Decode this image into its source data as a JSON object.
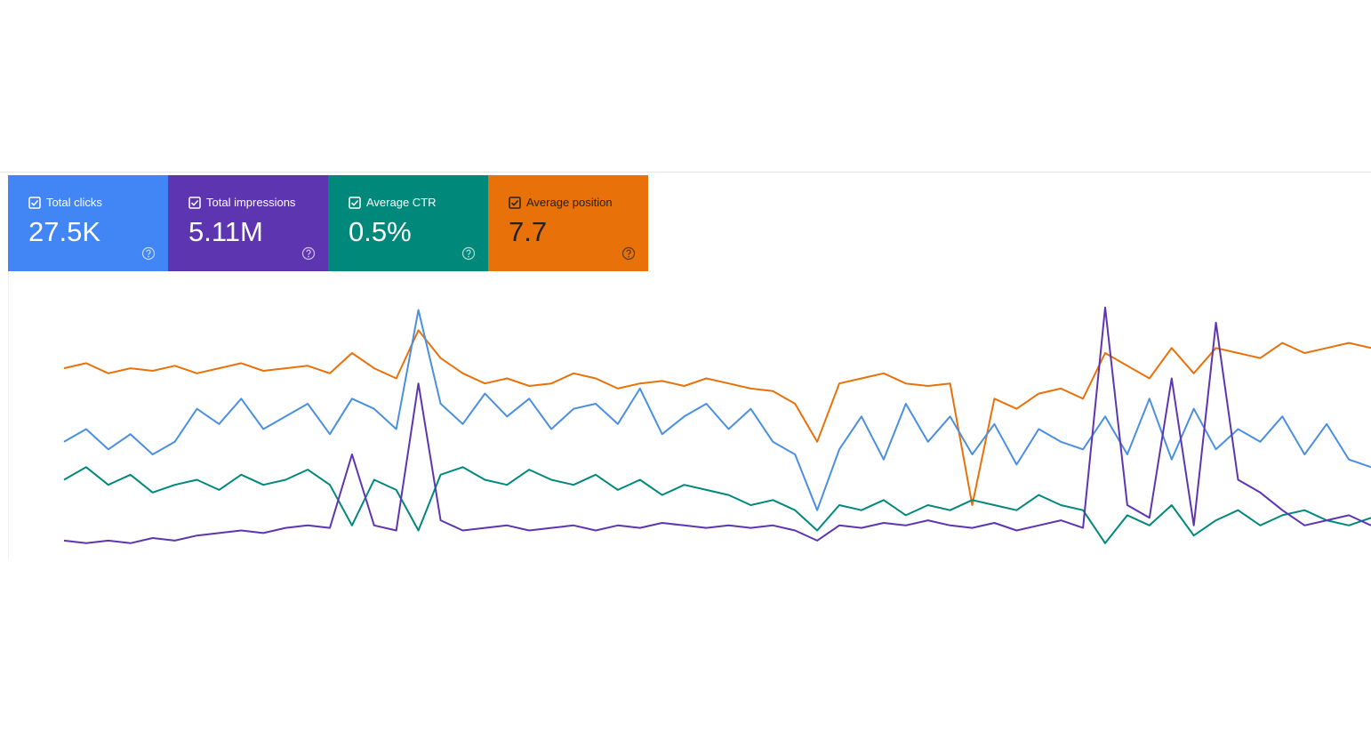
{
  "cards": [
    {
      "label": "Total clicks",
      "value": "27.5K",
      "color": "#4285f4"
    },
    {
      "label": "Total impressions",
      "value": "5.11M",
      "color": "#5e35b1"
    },
    {
      "label": "Average CTR",
      "value": "0.5%",
      "color": "#00897b"
    },
    {
      "label": "Average position",
      "value": "7.7",
      "color": "#e8710a"
    }
  ],
  "chart_data": {
    "type": "line",
    "ylim": [
      0,
      100
    ],
    "series": [
      {
        "color": "#e8710a",
        "values": [
          74,
          76,
          72,
          74,
          73,
          75,
          72,
          74,
          76,
          73,
          74,
          75,
          72,
          80,
          74,
          70,
          89,
          78,
          72,
          68,
          70,
          67,
          68,
          72,
          70,
          66,
          68,
          69,
          67,
          70,
          68,
          66,
          65,
          60,
          45,
          68,
          70,
          72,
          68,
          67,
          68,
          20,
          62,
          58,
          64,
          66,
          62,
          80,
          75,
          70,
          82,
          72,
          82,
          80,
          78,
          84,
          80,
          82,
          84,
          82
        ]
      },
      {
        "color": "#4a8fe0",
        "values": [
          45,
          50,
          42,
          48,
          40,
          45,
          58,
          52,
          62,
          50,
          55,
          60,
          48,
          62,
          58,
          50,
          97,
          60,
          52,
          64,
          55,
          62,
          50,
          58,
          60,
          52,
          66,
          48,
          55,
          60,
          50,
          58,
          45,
          40,
          18,
          42,
          55,
          38,
          60,
          45,
          55,
          40,
          52,
          36,
          50,
          45,
          42,
          55,
          40,
          62,
          38,
          58,
          42,
          50,
          45,
          55,
          40,
          52,
          38,
          35
        ]
      },
      {
        "color": "#00897b",
        "values": [
          30,
          35,
          28,
          32,
          25,
          28,
          30,
          26,
          32,
          28,
          30,
          34,
          28,
          12,
          30,
          26,
          10,
          32,
          35,
          30,
          28,
          34,
          30,
          28,
          32,
          26,
          30,
          24,
          28,
          26,
          24,
          20,
          22,
          18,
          10,
          20,
          18,
          22,
          16,
          20,
          18,
          22,
          20,
          18,
          24,
          20,
          18,
          5,
          16,
          12,
          20,
          8,
          14,
          18,
          12,
          16,
          18,
          14,
          12,
          15
        ]
      },
      {
        "color": "#5e35b1",
        "values": [
          6,
          5,
          6,
          5,
          7,
          6,
          8,
          9,
          10,
          9,
          11,
          12,
          11,
          40,
          12,
          10,
          68,
          14,
          10,
          11,
          12,
          10,
          11,
          12,
          10,
          12,
          11,
          13,
          12,
          11,
          12,
          11,
          12,
          10,
          6,
          12,
          11,
          13,
          12,
          14,
          12,
          11,
          13,
          10,
          12,
          14,
          11,
          98,
          20,
          15,
          70,
          12,
          92,
          30,
          25,
          18,
          12,
          14,
          16,
          12
        ]
      }
    ]
  }
}
